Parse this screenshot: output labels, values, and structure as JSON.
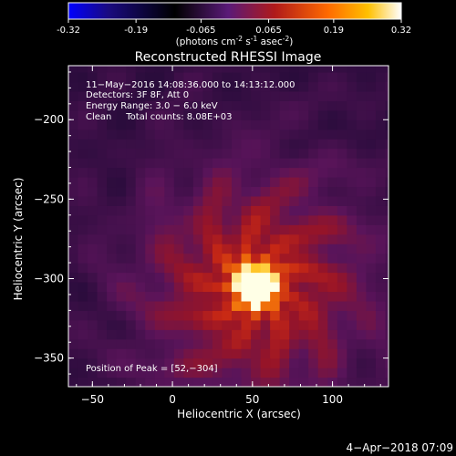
{
  "chart_data": {
    "type": "heatmap",
    "title": "Reconstructed RHESSI Image",
    "colorbar": {
      "ticks": [
        "-0.32",
        "-0.19",
        "-0.065",
        "0.065",
        "0.19",
        "0.32"
      ],
      "range": [
        -0.32,
        0.32
      ],
      "unit_parts": {
        "a": "(photons cm",
        "b": "-2",
        "c": " s",
        "d": "-1",
        "e": " asec",
        "f": "-2",
        "g": ")"
      },
      "colormap": "blue-black-purple-red-yellow-white"
    },
    "xlabel": "Heliocentric X (arcsec)",
    "ylabel": "Heliocentric Y (arcsec)",
    "xlim": [
      -65,
      135
    ],
    "ylim": [
      -368,
      -166
    ],
    "xticks": [
      {
        "v": -50,
        "l": "−50"
      },
      {
        "v": 0,
        "l": "0"
      },
      {
        "v": 50,
        "l": "50"
      },
      {
        "v": 100,
        "l": "100"
      }
    ],
    "yticks": [
      {
        "v": -200,
        "l": "−200"
      },
      {
        "v": -250,
        "l": "−250"
      },
      {
        "v": -300,
        "l": "−300"
      },
      {
        "v": -350,
        "l": "−350"
      }
    ],
    "annotations": {
      "line1": "11−May−2016 14:08:36.000 to 14:13:12.000",
      "line2": "Detectors: 3F 8F, Att 0",
      "line3": "Energy Range: 3.0 − 6.0 keV",
      "line4": "Clean     Total counts: 8.08E+03",
      "peak": "Position of Peak = [52,−304]"
    },
    "peak": [
      52,
      -304
    ],
    "grid": false
  },
  "footer": {
    "date": "4−Apr−2018 07:09"
  }
}
